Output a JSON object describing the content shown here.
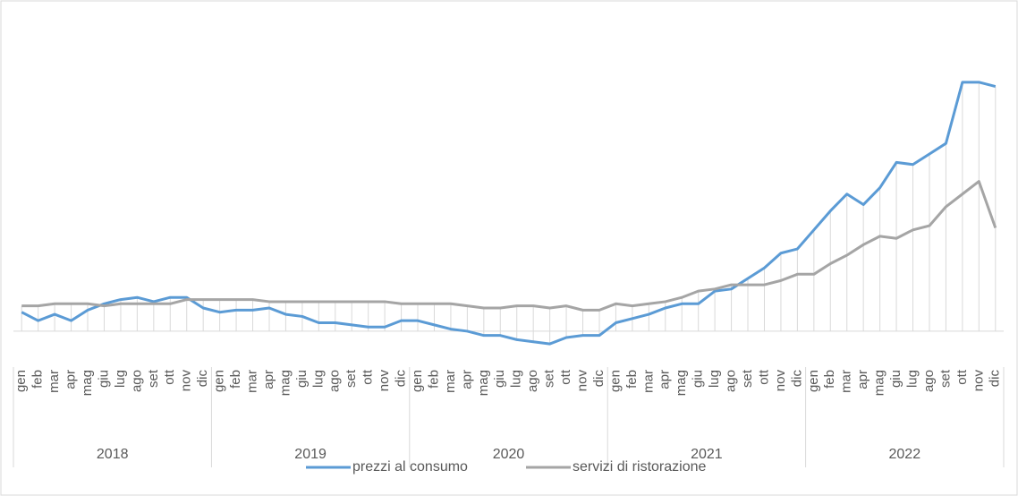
{
  "chart_data": {
    "type": "line",
    "categories": [
      "gen",
      "feb",
      "mar",
      "apr",
      "mag",
      "giu",
      "lug",
      "ago",
      "set",
      "ott",
      "nov",
      "dic",
      "gen",
      "feb",
      "mar",
      "apr",
      "mag",
      "giu",
      "lug",
      "ago",
      "set",
      "ott",
      "nov",
      "dic",
      "gen",
      "feb",
      "mar",
      "apr",
      "mag",
      "giu",
      "lug",
      "ago",
      "set",
      "ott",
      "nov",
      "dic",
      "gen",
      "feb",
      "mar",
      "apr",
      "mag",
      "giu",
      "lug",
      "ago",
      "set",
      "ott",
      "nov",
      "dic",
      "gen",
      "feb",
      "mar",
      "apr",
      "mag",
      "giu",
      "lug",
      "ago",
      "set",
      "ott",
      "nov",
      "dic"
    ],
    "groups": [
      "2018",
      "2019",
      "2020",
      "2021",
      "2022"
    ],
    "series": [
      {
        "name": "prezzi al consumo",
        "color": "#5b9bd5",
        "values": [
          0.9,
          0.5,
          0.8,
          0.5,
          1.0,
          1.3,
          1.5,
          1.6,
          1.4,
          1.6,
          1.6,
          1.1,
          0.9,
          1.0,
          1.0,
          1.1,
          0.8,
          0.7,
          0.4,
          0.4,
          0.3,
          0.2,
          0.2,
          0.5,
          0.5,
          0.3,
          0.1,
          0.0,
          -0.2,
          -0.2,
          -0.4,
          -0.5,
          -0.6,
          -0.3,
          -0.2,
          -0.2,
          0.4,
          0.6,
          0.8,
          1.1,
          1.3,
          1.3,
          1.9,
          2.0,
          2.5,
          3.0,
          3.7,
          3.9,
          4.8,
          5.7,
          6.5,
          6.0,
          6.8,
          8.0,
          7.9,
          8.4,
          8.9,
          11.8,
          11.8,
          11.6
        ]
      },
      {
        "name": "servizi di ristorazione",
        "color": "#a5a5a5",
        "values": [
          1.2,
          1.2,
          1.3,
          1.3,
          1.3,
          1.2,
          1.3,
          1.3,
          1.3,
          1.3,
          1.5,
          1.5,
          1.5,
          1.5,
          1.5,
          1.4,
          1.4,
          1.4,
          1.4,
          1.4,
          1.4,
          1.4,
          1.4,
          1.3,
          1.3,
          1.3,
          1.3,
          1.2,
          1.1,
          1.1,
          1.2,
          1.2,
          1.1,
          1.2,
          1.0,
          1.0,
          1.3,
          1.2,
          1.3,
          1.4,
          1.6,
          1.9,
          2.0,
          2.2,
          2.2,
          2.2,
          2.4,
          2.7,
          2.7,
          3.2,
          3.6,
          4.1,
          4.5,
          4.4,
          4.8,
          5.0,
          5.9,
          6.5,
          7.1,
          4.9
        ]
      }
    ],
    "ylim": [
      -1.7,
      14
    ]
  }
}
